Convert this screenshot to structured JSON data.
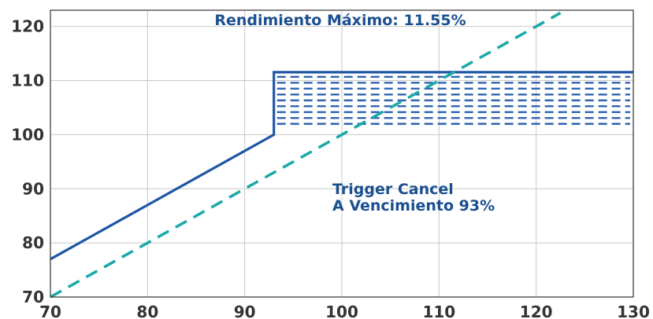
{
  "chart_data": {
    "type": "line",
    "title": "",
    "xlabel": "",
    "ylabel": "",
    "xlim": [
      70,
      130
    ],
    "ylim": [
      70,
      123
    ],
    "grid": true,
    "legend": "none",
    "x_ticks": [
      70,
      80,
      90,
      100,
      110,
      120,
      130
    ],
    "y_ticks": [
      70,
      80,
      90,
      100,
      110,
      120
    ],
    "series": [
      {
        "style": "solid",
        "color": "#1f57a6",
        "x": [
          70,
          93,
          93,
          130
        ],
        "y": [
          77,
          100,
          111.55,
          111.55
        ]
      },
      {
        "style": "dashed",
        "color": "#1aa8a8",
        "x": [
          70,
          122.5
        ],
        "y": [
          70,
          122.5
        ]
      }
    ],
    "shaded_band": {
      "pattern": "horizontal-dashes",
      "color": "#2f64b0",
      "x_from": 93,
      "x_to": 130,
      "y_from": 102,
      "y_to": 111.55
    },
    "annotations": {
      "max_return": "Rendimiento Máximo: 11.55%",
      "trigger_line1": "Trigger Cancel",
      "trigger_line2": "A Vencimiento 93%"
    }
  }
}
